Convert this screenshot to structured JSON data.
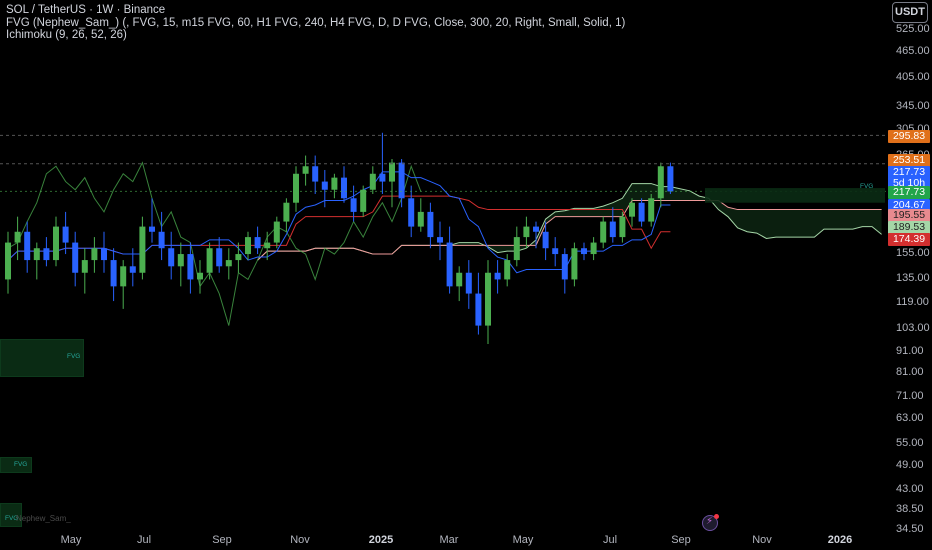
{
  "symbol": {
    "title": "SOL / TetherUS · 1W · Binance",
    "indicator_fvg": "FVG (Nephew_Sam_) (, FVG, 15, m15 FVG, 60, H1 FVG, 240, H4 FVG, D, D FVG, Close, 300, 20, Right, Small, Solid, 1)",
    "indicator_ichimoku": "Ichimoku (9, 26, 52, 26)"
  },
  "currency_button": "USDT",
  "price_axis": [
    "525.00",
    "465.00",
    "405.00",
    "345.00",
    "305.00",
    "265.00",
    "155.00",
    "135.00",
    "119.00",
    "103.00",
    "91.00",
    "81.00",
    "71.00",
    "63.00",
    "55.00",
    "49.00",
    "43.00",
    "38.50",
    "34.50"
  ],
  "time_axis": [
    "May",
    "Jul",
    "Sep",
    "Nov",
    "2025",
    "Mar",
    "May",
    "Jul",
    "Sep",
    "Nov",
    "2026"
  ],
  "price_badges": [
    {
      "text": "295.83",
      "color": "#e0701a"
    },
    {
      "text": "253.51",
      "color": "#e0701a"
    },
    {
      "text": "217.73",
      "color": "#2962ff"
    },
    {
      "text": "5d 10h",
      "color": "#2962ff"
    },
    {
      "text": "217.73",
      "color": "#22a54a"
    },
    {
      "text": "204.67",
      "color": "#2962ff"
    },
    {
      "text": "195.55",
      "color": "#e88a8f"
    },
    {
      "text": "189.53",
      "color": "#a5d6a7"
    },
    {
      "text": "174.39",
      "color": "#d32f2f"
    }
  ],
  "fvg_labels": [
    "FVG",
    "FVG",
    "FVG",
    "FVG"
  ],
  "watermark": "Nephew_Sam_",
  "colors": {
    "up": "#4caf50",
    "down": "#2962ff",
    "conversion": "#2962ff",
    "base": "#d32f2f",
    "lagging": "#4caf50",
    "spanA": "#a5d6a7",
    "spanB": "#ef9a9a"
  },
  "chart_data": {
    "type": "candlestick",
    "title": "SOL / TetherUS · 1W · Binance",
    "y_scale": "log",
    "ylim": [
      34.5,
      525
    ],
    "x_labels": [
      "May",
      "Jul",
      "Sep",
      "Nov",
      "2025",
      "Mar",
      "May",
      "Jul",
      "Sep",
      "Nov",
      "2026"
    ],
    "ohlc": [
      [
        135,
        175,
        125,
        165
      ],
      [
        165,
        190,
        150,
        175
      ],
      [
        175,
        185,
        140,
        150
      ],
      [
        150,
        165,
        135,
        160
      ],
      [
        160,
        170,
        145,
        150
      ],
      [
        150,
        190,
        145,
        180
      ],
      [
        180,
        195,
        155,
        165
      ],
      [
        165,
        175,
        130,
        140
      ],
      [
        140,
        160,
        125,
        150
      ],
      [
        150,
        170,
        140,
        160
      ],
      [
        160,
        175,
        140,
        150
      ],
      [
        150,
        160,
        120,
        130
      ],
      [
        130,
        150,
        115,
        145
      ],
      [
        145,
        160,
        130,
        140
      ],
      [
        140,
        190,
        135,
        180
      ],
      [
        180,
        210,
        165,
        175
      ],
      [
        175,
        195,
        150,
        160
      ],
      [
        160,
        175,
        135,
        145
      ],
      [
        145,
        165,
        130,
        155
      ],
      [
        155,
        165,
        125,
        135
      ],
      [
        135,
        150,
        125,
        140
      ],
      [
        140,
        165,
        135,
        160
      ],
      [
        160,
        170,
        140,
        145
      ],
      [
        145,
        160,
        135,
        150
      ],
      [
        150,
        165,
        140,
        155
      ],
      [
        155,
        175,
        150,
        170
      ],
      [
        170,
        180,
        155,
        160
      ],
      [
        160,
        175,
        150,
        165
      ],
      [
        165,
        190,
        160,
        185
      ],
      [
        185,
        210,
        175,
        205
      ],
      [
        205,
        250,
        195,
        240
      ],
      [
        240,
        265,
        225,
        250
      ],
      [
        250,
        265,
        215,
        230
      ],
      [
        230,
        245,
        200,
        220
      ],
      [
        220,
        240,
        210,
        235
      ],
      [
        235,
        250,
        205,
        210
      ],
      [
        210,
        225,
        185,
        195
      ],
      [
        195,
        225,
        190,
        220
      ],
      [
        220,
        250,
        215,
        240
      ],
      [
        240,
        300,
        215,
        230
      ],
      [
        230,
        260,
        200,
        255
      ],
      [
        255,
        260,
        200,
        210
      ],
      [
        210,
        225,
        170,
        180
      ],
      [
        180,
        210,
        175,
        195
      ],
      [
        195,
        205,
        160,
        170
      ],
      [
        170,
        185,
        150,
        165
      ],
      [
        165,
        180,
        125,
        130
      ],
      [
        130,
        145,
        120,
        140
      ],
      [
        140,
        150,
        115,
        125
      ],
      [
        125,
        140,
        100,
        105
      ],
      [
        105,
        150,
        95,
        140
      ],
      [
        140,
        150,
        125,
        135
      ],
      [
        135,
        155,
        130,
        150
      ],
      [
        150,
        180,
        145,
        170
      ],
      [
        170,
        190,
        160,
        180
      ],
      [
        180,
        185,
        160,
        175
      ],
      [
        175,
        185,
        150,
        160
      ],
      [
        160,
        170,
        145,
        155
      ],
      [
        155,
        160,
        125,
        135
      ],
      [
        135,
        165,
        130,
        160
      ],
      [
        160,
        165,
        150,
        155
      ],
      [
        155,
        170,
        150,
        165
      ],
      [
        165,
        190,
        160,
        185
      ],
      [
        185,
        200,
        165,
        170
      ],
      [
        170,
        195,
        165,
        190
      ],
      [
        190,
        210,
        180,
        205
      ],
      [
        205,
        210,
        180,
        185
      ],
      [
        185,
        215,
        180,
        210
      ],
      [
        210,
        255,
        200,
        250
      ],
      [
        250,
        255,
        215,
        218
      ]
    ]
  }
}
